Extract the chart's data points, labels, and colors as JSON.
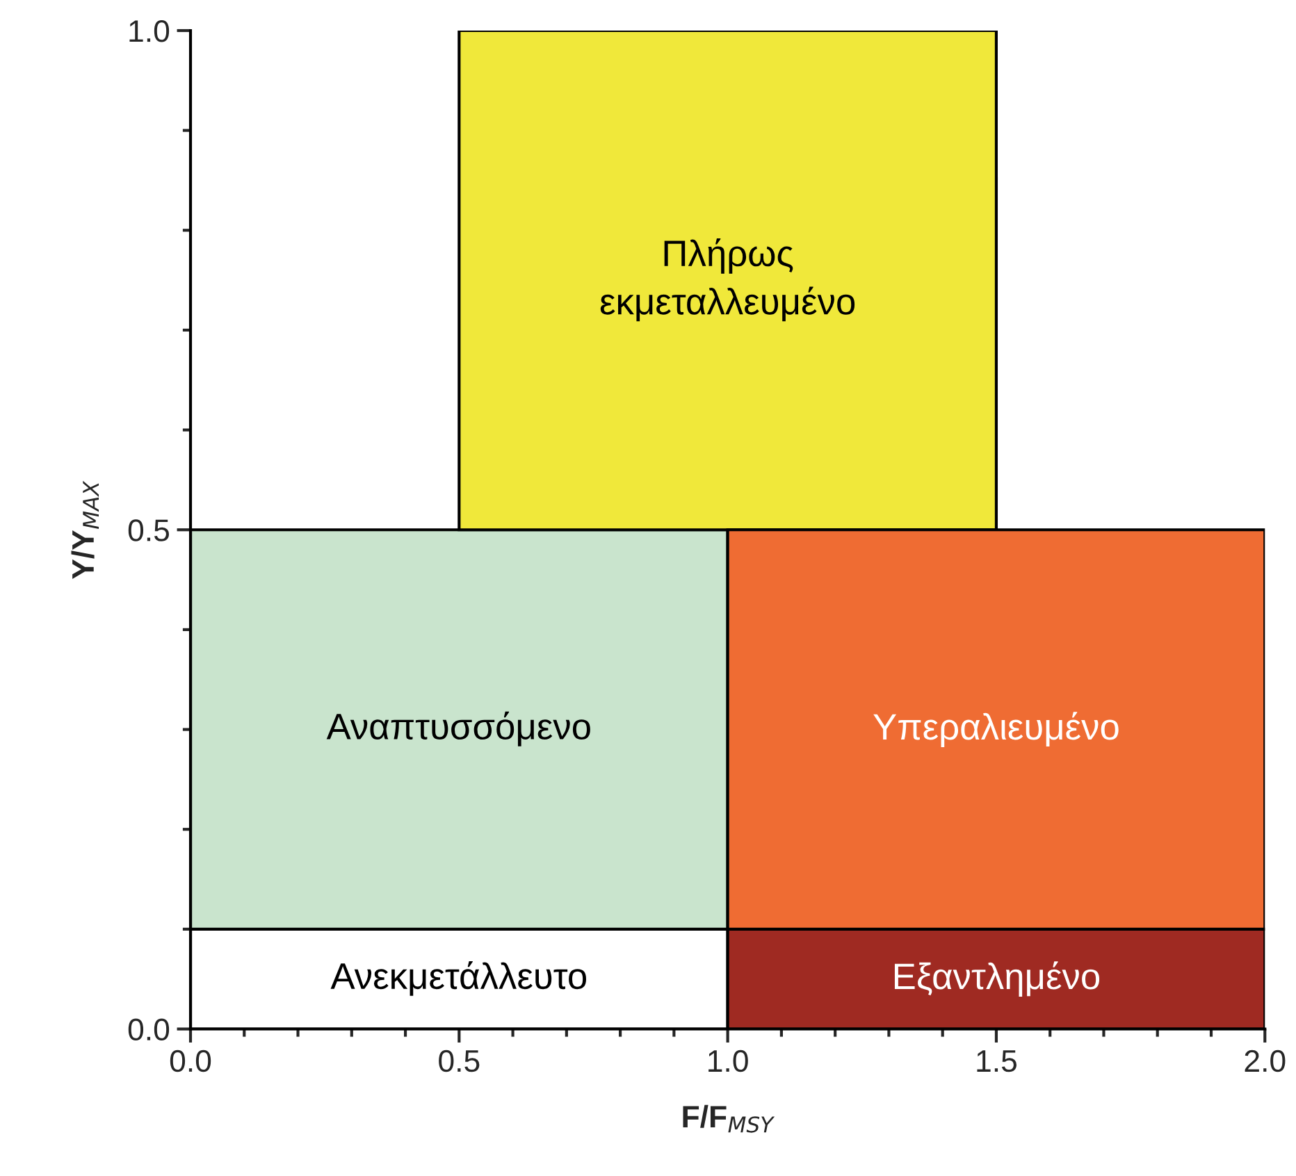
{
  "chart_data": {
    "type": "bar",
    "series": [
      {
        "x": [
          0.5,
          1.5
        ],
        "base": [
          0,
          0
        ],
        "values": [
          0.1,
          0.1
        ],
        "colors": [
          "#ffffff",
          "#9f2a22"
        ]
      },
      {
        "x": [
          0.5,
          1.0,
          1.5
        ],
        "base": [
          0.1,
          0.5,
          0.1
        ],
        "values": [
          0.4,
          0.5,
          0.4
        ],
        "colors": [
          "#c9e4cd",
          "#f0e83a",
          "#ef6c33"
        ]
      }
    ],
    "xlabel": "F/F$_{MSY}$",
    "ylabel": "Y/Y$_{MAX}$",
    "xlim": [
      0,
      2
    ],
    "ylim": [
      0,
      1
    ],
    "xticks": [
      {
        "value": 0,
        "label": "0.0"
      },
      {
        "value": 0.1,
        "label": null
      },
      {
        "value": 0.2,
        "label": null
      },
      {
        "value": 0.3,
        "label": null
      },
      {
        "value": 0.4,
        "label": null
      },
      {
        "value": 0.5,
        "label": "0.5"
      },
      {
        "value": 0.6,
        "label": null
      },
      {
        "value": 0.7,
        "label": null
      },
      {
        "value": 0.8,
        "label": null
      },
      {
        "value": 0.9,
        "label": null
      },
      {
        "value": 1,
        "label": "1.0"
      },
      {
        "value": 1.1,
        "label": null
      },
      {
        "value": 1.2,
        "label": null
      },
      {
        "value": 1.3,
        "label": null
      },
      {
        "value": 1.4,
        "label": null
      },
      {
        "value": 1.5,
        "label": "1.5"
      },
      {
        "value": 1.6,
        "label": null
      },
      {
        "value": 1.7,
        "label": null
      },
      {
        "value": 1.8,
        "label": null
      },
      {
        "value": 1.9,
        "label": null
      },
      {
        "value": 2,
        "label": "2.0"
      }
    ],
    "yticks": [
      {
        "value": 0,
        "label": "0.0"
      },
      {
        "value": 0.1,
        "label": null
      },
      {
        "value": 0.2,
        "label": null
      },
      {
        "value": 0.3,
        "label": null
      },
      {
        "value": 0.4,
        "label": null
      },
      {
        "value": 0.5,
        "label": "0.5"
      },
      {
        "value": 0.6,
        "label": null
      },
      {
        "value": 0.7,
        "label": null
      },
      {
        "value": 0.8,
        "label": null
      },
      {
        "value": 0.9,
        "label": null
      },
      {
        "value": 1,
        "label": "1.0"
      }
    ],
    "annotations": [
      "Ανεκμετάλλευτο",
      "Εξαντλημένο",
      "Αναπτυσσόμενο",
      "Πλήρως\nεκμεταλλευμένο",
      "Υπεραλιευμένο"
    ],
    "grid": false,
    "legend": false
  }
}
